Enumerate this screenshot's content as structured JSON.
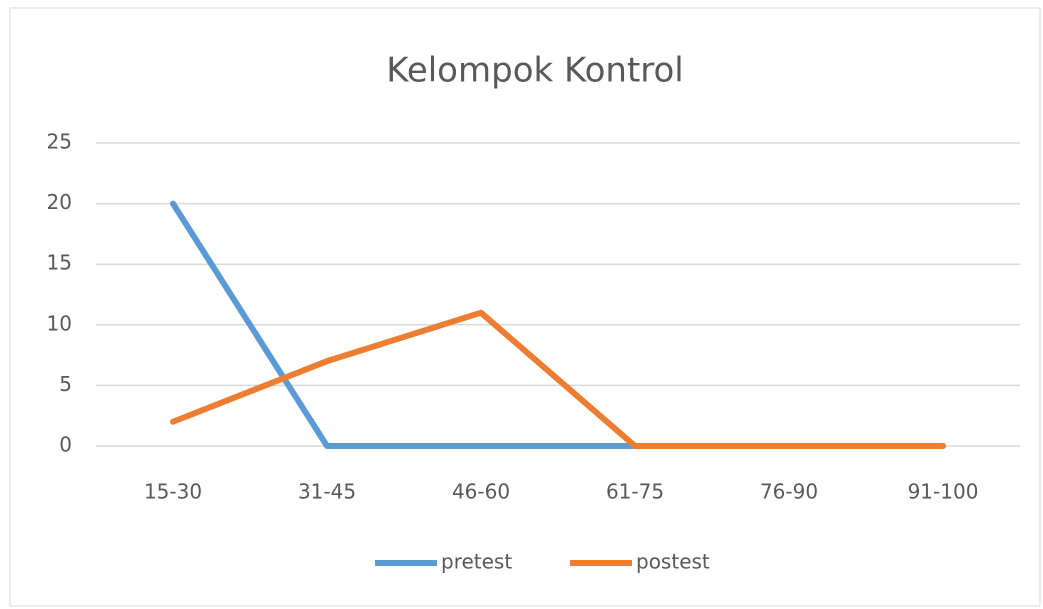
{
  "chart_data": {
    "type": "line",
    "title": "Kelompok Kontrol",
    "categories": [
      "15-30",
      "31-45",
      "46-60",
      "61-75",
      "76-90",
      "91-100"
    ],
    "series": [
      {
        "name": "pretest",
        "color": "#5b9bd5",
        "values": [
          20,
          0,
          0,
          0,
          0,
          0
        ]
      },
      {
        "name": "postest",
        "color": "#ed7d31",
        "values": [
          2,
          7,
          11,
          0,
          0,
          0
        ]
      }
    ],
    "ylim": [
      0,
      25
    ],
    "yticks": [
      0,
      5,
      10,
      15,
      20,
      25
    ],
    "grid": true,
    "legend": "bottom"
  }
}
